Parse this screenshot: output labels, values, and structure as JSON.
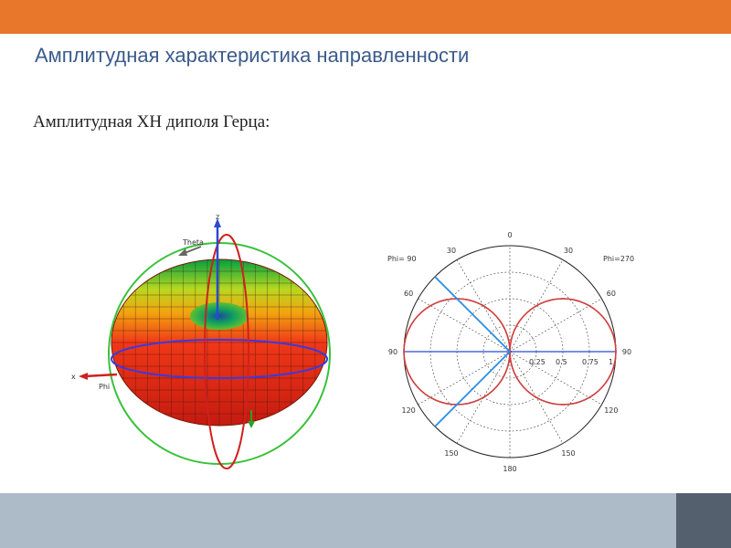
{
  "slide": {
    "title": "Амплитудная характеристика направленности",
    "subtitle": "Амплитудная ХН диполя Герца:"
  },
  "colors": {
    "top_bar": "#e8762b",
    "title": "#3b5b8c",
    "bottom_bar": "#adbac7",
    "bottom_corner": "#54606d",
    "pattern_curve": "#d04040",
    "ray": "#2a8de0",
    "axis_circle": "#39c139"
  },
  "figure3d": {
    "axis_labels": {
      "z": "z",
      "x": "x",
      "theta": "Theta",
      "phi": "Phi"
    }
  },
  "chart_data": {
    "type": "polar",
    "title": "",
    "angle_labels_left": [
      "0",
      "30",
      "60",
      "90",
      "120",
      "150",
      "180"
    ],
    "angle_labels_right": [
      "30",
      "60",
      "90",
      "120",
      "150"
    ],
    "radial_ticks": [
      "0.25",
      "0.5",
      "0.75",
      "1"
    ],
    "radial_range": [
      0,
      1
    ],
    "grid": true,
    "plane_labels": {
      "left": "Phi= 90",
      "right": "Phi=270"
    },
    "series": [
      {
        "function": "|sin(theta)|",
        "theta_deg": [
          0,
          30,
          60,
          90,
          120,
          150,
          180
        ],
        "r": [
          0,
          0.5,
          0.866,
          1,
          0.866,
          0.5,
          0
        ]
      }
    ],
    "rays_deg": [
      45,
      135
    ]
  }
}
